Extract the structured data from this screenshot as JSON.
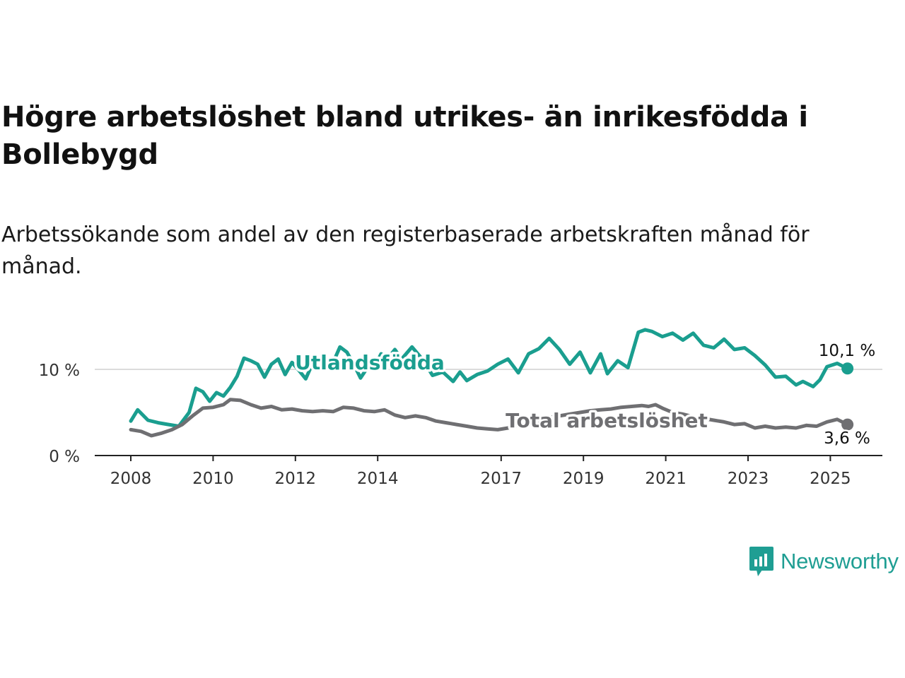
{
  "title": "Högre arbetslöshet bland utrikes- än inrikesfödda i Bollebygd",
  "subtitle": "Arbetssökande som andel av den registerbaserade arbetskraften månad för månad.",
  "brand": {
    "name": "Newsworthy",
    "color": "#1f9e93"
  },
  "chart_data": {
    "type": "line",
    "title": "Högre arbetslöshet bland utrikes- än inrikesfödda i Bollebygd",
    "subtitle": "Arbetssökande som andel av den registerbaserade arbetskraften månad för månad.",
    "xlabel": "",
    "ylabel": "",
    "x_ticks": [
      "2008",
      "2010",
      "2012",
      "2014",
      "2017",
      "2019",
      "2021",
      "2023",
      "2025"
    ],
    "y_ticks": [
      {
        "value": 0,
        "label": "0 %"
      },
      {
        "value": 10,
        "label": "10 %"
      }
    ],
    "ylim": [
      0,
      15
    ],
    "xlim": [
      "2007-10",
      "2025-12"
    ],
    "grid": "horizontal at 10 %",
    "legend": "inline labels",
    "series": [
      {
        "name": "Utlandsfödda",
        "color": "#1a9e8f",
        "end_label": "10,1 %",
        "points": [
          [
            "2008-01",
            4.0
          ],
          [
            "2008-03",
            5.3
          ],
          [
            "2008-06",
            4.1
          ],
          [
            "2008-09",
            3.8
          ],
          [
            "2008-12",
            3.6
          ],
          [
            "2009-03",
            3.4
          ],
          [
            "2009-06",
            5.0
          ],
          [
            "2009-08",
            7.8
          ],
          [
            "2009-10",
            7.4
          ],
          [
            "2009-12",
            6.3
          ],
          [
            "2010-02",
            7.3
          ],
          [
            "2010-04",
            6.9
          ],
          [
            "2010-06",
            7.9
          ],
          [
            "2010-08",
            9.2
          ],
          [
            "2010-10",
            11.3
          ],
          [
            "2010-12",
            11.0
          ],
          [
            "2011-02",
            10.6
          ],
          [
            "2011-04",
            9.1
          ],
          [
            "2011-06",
            10.6
          ],
          [
            "2011-08",
            11.2
          ],
          [
            "2011-10",
            9.4
          ],
          [
            "2011-12",
            10.8
          ],
          [
            "2012-02",
            9.9
          ],
          [
            "2012-04",
            8.9
          ],
          [
            "2012-06",
            10.7
          ],
          [
            "2012-09",
            10.0
          ],
          [
            "2012-12",
            10.8
          ],
          [
            "2013-02",
            12.6
          ],
          [
            "2013-04",
            12.0
          ],
          [
            "2013-06",
            10.6
          ],
          [
            "2013-08",
            9.0
          ],
          [
            "2013-10",
            10.2
          ],
          [
            "2013-12",
            10.3
          ],
          [
            "2014-02",
            11.8
          ],
          [
            "2014-04",
            11.3
          ],
          [
            "2014-06",
            12.3
          ],
          [
            "2014-08",
            11.2
          ],
          [
            "2014-11",
            12.6
          ],
          [
            "2015-02",
            11.2
          ],
          [
            "2015-05",
            9.3
          ],
          [
            "2015-08",
            9.7
          ],
          [
            "2015-11",
            8.6
          ],
          [
            "2016-01",
            9.7
          ],
          [
            "2016-03",
            8.7
          ],
          [
            "2016-06",
            9.4
          ],
          [
            "2016-09",
            9.8
          ],
          [
            "2016-12",
            10.6
          ],
          [
            "2017-03",
            11.2
          ],
          [
            "2017-06",
            9.6
          ],
          [
            "2017-09",
            11.8
          ],
          [
            "2017-12",
            12.4
          ],
          [
            "2018-03",
            13.6
          ],
          [
            "2018-06",
            12.3
          ],
          [
            "2018-09",
            10.6
          ],
          [
            "2018-12",
            12.0
          ],
          [
            "2019-03",
            9.6
          ],
          [
            "2019-06",
            11.8
          ],
          [
            "2019-08",
            9.5
          ],
          [
            "2019-11",
            11.0
          ],
          [
            "2020-02",
            10.2
          ],
          [
            "2020-05",
            14.3
          ],
          [
            "2020-07",
            14.6
          ],
          [
            "2020-09",
            14.4
          ],
          [
            "2020-12",
            13.8
          ],
          [
            "2021-03",
            14.2
          ],
          [
            "2021-06",
            13.4
          ],
          [
            "2021-09",
            14.2
          ],
          [
            "2021-12",
            12.8
          ],
          [
            "2022-03",
            12.5
          ],
          [
            "2022-06",
            13.5
          ],
          [
            "2022-09",
            12.3
          ],
          [
            "2022-12",
            12.5
          ],
          [
            "2023-03",
            11.6
          ],
          [
            "2023-06",
            10.5
          ],
          [
            "2023-09",
            9.1
          ],
          [
            "2023-12",
            9.2
          ],
          [
            "2024-03",
            8.2
          ],
          [
            "2024-05",
            8.6
          ],
          [
            "2024-08",
            8.0
          ],
          [
            "2024-10",
            8.8
          ],
          [
            "2024-12",
            10.3
          ],
          [
            "2025-03",
            10.7
          ],
          [
            "2025-06",
            10.1
          ]
        ]
      },
      {
        "name": "Total arbetslöshet",
        "color": "#6f6f72",
        "end_label": "3,6 %",
        "points": [
          [
            "2008-01",
            3.0
          ],
          [
            "2008-04",
            2.8
          ],
          [
            "2008-07",
            2.3
          ],
          [
            "2008-10",
            2.6
          ],
          [
            "2009-01",
            3.0
          ],
          [
            "2009-04",
            3.6
          ],
          [
            "2009-07",
            4.6
          ],
          [
            "2009-10",
            5.5
          ],
          [
            "2010-01",
            5.6
          ],
          [
            "2010-04",
            5.9
          ],
          [
            "2010-06",
            6.5
          ],
          [
            "2010-09",
            6.4
          ],
          [
            "2010-12",
            5.9
          ],
          [
            "2011-03",
            5.5
          ],
          [
            "2011-06",
            5.7
          ],
          [
            "2011-09",
            5.3
          ],
          [
            "2011-12",
            5.4
          ],
          [
            "2012-03",
            5.2
          ],
          [
            "2012-06",
            5.1
          ],
          [
            "2012-09",
            5.2
          ],
          [
            "2012-12",
            5.1
          ],
          [
            "2013-03",
            5.6
          ],
          [
            "2013-06",
            5.5
          ],
          [
            "2013-09",
            5.2
          ],
          [
            "2013-12",
            5.1
          ],
          [
            "2014-03",
            5.3
          ],
          [
            "2014-06",
            4.7
          ],
          [
            "2014-09",
            4.4
          ],
          [
            "2014-12",
            4.6
          ],
          [
            "2015-03",
            4.4
          ],
          [
            "2015-06",
            4.0
          ],
          [
            "2015-09",
            3.8
          ],
          [
            "2015-12",
            3.6
          ],
          [
            "2016-03",
            3.4
          ],
          [
            "2016-06",
            3.2
          ],
          [
            "2016-09",
            3.1
          ],
          [
            "2016-12",
            3.0
          ],
          [
            "2017-03",
            3.2
          ],
          [
            "2017-06",
            3.5
          ],
          [
            "2017-09",
            3.8
          ],
          [
            "2017-12",
            4.1
          ],
          [
            "2018-03",
            4.4
          ],
          [
            "2018-06",
            4.6
          ],
          [
            "2018-09",
            4.8
          ],
          [
            "2018-12",
            5.0
          ],
          [
            "2019-03",
            5.2
          ],
          [
            "2019-06",
            5.3
          ],
          [
            "2019-09",
            5.4
          ],
          [
            "2019-12",
            5.6
          ],
          [
            "2020-03",
            5.7
          ],
          [
            "2020-06",
            5.8
          ],
          [
            "2020-08",
            5.7
          ],
          [
            "2020-10",
            5.9
          ],
          [
            "2020-12",
            5.5
          ],
          [
            "2021-03",
            5.0
          ],
          [
            "2021-06",
            4.8
          ],
          [
            "2021-09",
            4.5
          ],
          [
            "2021-12",
            4.3
          ],
          [
            "2022-03",
            4.1
          ],
          [
            "2022-06",
            3.9
          ],
          [
            "2022-09",
            3.6
          ],
          [
            "2022-12",
            3.7
          ],
          [
            "2023-03",
            3.2
          ],
          [
            "2023-06",
            3.4
          ],
          [
            "2023-09",
            3.2
          ],
          [
            "2023-12",
            3.3
          ],
          [
            "2024-03",
            3.2
          ],
          [
            "2024-06",
            3.5
          ],
          [
            "2024-09",
            3.4
          ],
          [
            "2024-12",
            3.9
          ],
          [
            "2025-03",
            4.2
          ],
          [
            "2025-06",
            3.6
          ]
        ]
      }
    ]
  }
}
